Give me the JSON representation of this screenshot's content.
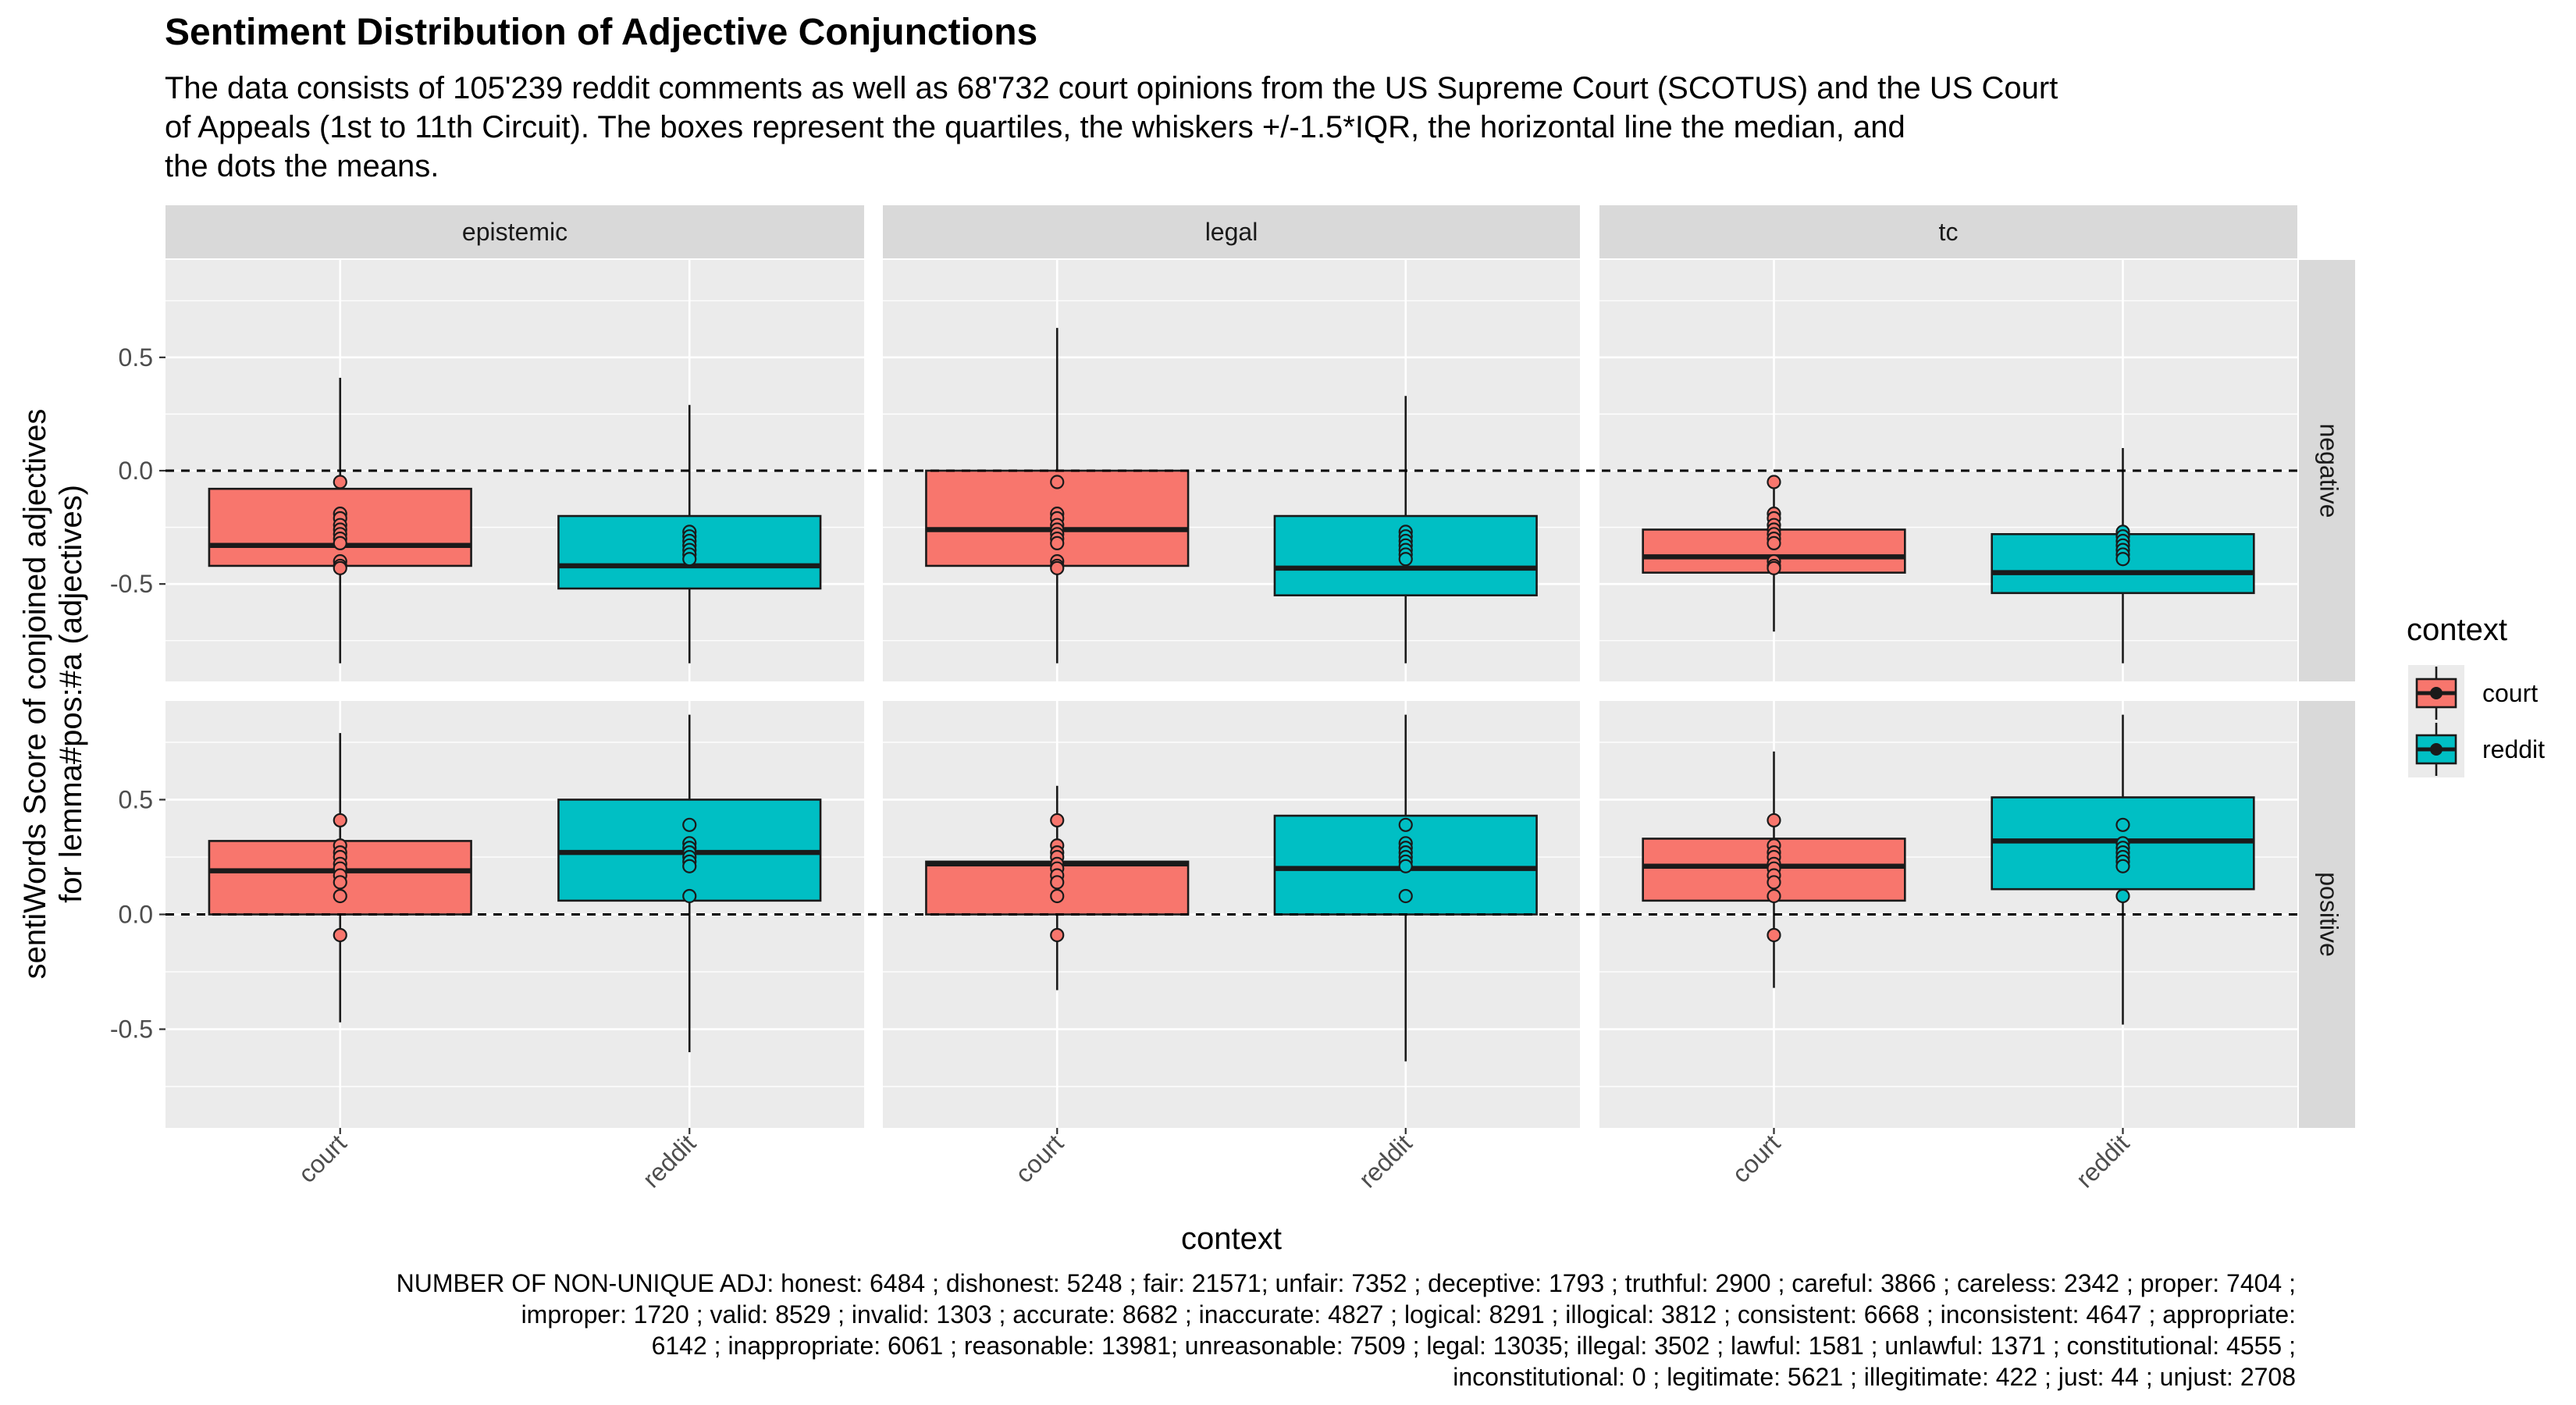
{
  "title": "Sentiment Distribution of Adjective Conjunctions",
  "subtitle_lines": [
    "The data consists of 105'239 reddit comments as well as 68'732 court opinions from the US Supreme Court (SCOTUS) and the US Court",
    "of Appeals (1st to 11th Circuit). The boxes represent the quartiles, the whiskers +/-1.5*IQR, the horizontal line the median, and",
    "the dots the means."
  ],
  "caption_lines": [
    "NUMBER OF NON-UNIQUE ADJ: honest: 6484 ; dishonest: 5248 ; fair: 21571; unfair: 7352 ; deceptive: 1793 ; truthful: 2900 ; careful: 3866 ; careless: 2342 ; proper: 7404 ;",
    "improper: 1720 ; valid: 8529 ; invalid: 1303 ; accurate: 8682 ; inaccurate: 4827 ; logical: 8291 ; illogical: 3812 ; consistent: 6668 ; inconsistent: 4647 ; appropriate:",
    "6142 ; inappropriate: 6061 ; reasonable: 13981; unreasonable: 7509 ; legal: 13035; illegal: 3502 ; lawful: 1581 ; unlawful: 1371 ; constitutional: 4555 ;",
    "inconstitutional: 0 ; legitimate: 5621 ; illegitimate: 422 ; just: 44 ; unjust: 2708"
  ],
  "chart_data": {
    "type": "boxplot",
    "xlabel": "context",
    "ylabel": "sentiWords Score of conjoined adjectives",
    "ylabel2": "for lemma#pos:#a (adjectives)",
    "categories": [
      "court",
      "reddit"
    ],
    "column_facets": [
      "epistemic",
      "legal",
      "tc"
    ],
    "row_facets": [
      "negative",
      "positive"
    ],
    "y_ticks": [
      -0.5,
      0.0,
      0.5
    ],
    "y_tick_labels": [
      "-0.5",
      "0.0",
      "0.5"
    ],
    "ylim": [
      -0.93,
      0.93
    ],
    "reference_line_y": 0,
    "grid": true,
    "legend": {
      "title": "context",
      "position": "right",
      "entries": [
        {
          "label": "court",
          "color": "#F8766D"
        },
        {
          "label": "reddit",
          "color": "#00BFC4"
        }
      ]
    },
    "panels": [
      {
        "row": "negative",
        "col": "epistemic",
        "boxes": [
          {
            "category": "court",
            "whisker_low": -0.85,
            "q1": -0.42,
            "median": -0.33,
            "q3": -0.08,
            "whisker_high": 0.41,
            "means": [
              -0.05,
              -0.19,
              -0.21,
              -0.24,
              -0.26,
              -0.28,
              -0.3,
              -0.32,
              -0.4,
              -0.42,
              -0.43
            ]
          },
          {
            "category": "reddit",
            "whisker_low": -0.85,
            "q1": -0.52,
            "median": -0.42,
            "q3": -0.2,
            "whisker_high": 0.29,
            "means": [
              -0.27,
              -0.29,
              -0.31,
              -0.33,
              -0.35,
              -0.37,
              -0.39
            ]
          }
        ]
      },
      {
        "row": "negative",
        "col": "legal",
        "boxes": [
          {
            "category": "court",
            "whisker_low": -0.85,
            "q1": -0.42,
            "median": -0.26,
            "q3": 0.0,
            "whisker_high": 0.63,
            "means": [
              -0.05,
              -0.19,
              -0.21,
              -0.24,
              -0.26,
              -0.28,
              -0.3,
              -0.32,
              -0.4,
              -0.42,
              -0.43
            ]
          },
          {
            "category": "reddit",
            "whisker_low": -0.85,
            "q1": -0.55,
            "median": -0.43,
            "q3": -0.2,
            "whisker_high": 0.33,
            "means": [
              -0.27,
              -0.29,
              -0.31,
              -0.33,
              -0.35,
              -0.37,
              -0.39
            ]
          }
        ]
      },
      {
        "row": "negative",
        "col": "tc",
        "boxes": [
          {
            "category": "court",
            "whisker_low": -0.71,
            "q1": -0.45,
            "median": -0.38,
            "q3": -0.26,
            "whisker_high": -0.06,
            "means": [
              -0.05,
              -0.19,
              -0.21,
              -0.24,
              -0.26,
              -0.28,
              -0.3,
              -0.32,
              -0.4,
              -0.42,
              -0.43
            ]
          },
          {
            "category": "reddit",
            "whisker_low": -0.85,
            "q1": -0.54,
            "median": -0.45,
            "q3": -0.28,
            "whisker_high": 0.1,
            "means": [
              -0.27,
              -0.29,
              -0.31,
              -0.33,
              -0.35,
              -0.37,
              -0.39
            ]
          }
        ]
      },
      {
        "row": "positive",
        "col": "epistemic",
        "boxes": [
          {
            "category": "court",
            "whisker_low": -0.47,
            "q1": 0.0,
            "median": 0.19,
            "q3": 0.32,
            "whisker_high": 0.79,
            "means": [
              0.41,
              0.3,
              0.27,
              0.25,
              0.22,
              0.2,
              0.17,
              0.14,
              0.08,
              -0.09
            ]
          },
          {
            "category": "reddit",
            "whisker_low": -0.6,
            "q1": 0.06,
            "median": 0.27,
            "q3": 0.5,
            "whisker_high": 0.87,
            "means": [
              0.39,
              0.31,
              0.29,
              0.27,
              0.25,
              0.23,
              0.21,
              0.08
            ]
          }
        ]
      },
      {
        "row": "positive",
        "col": "legal",
        "boxes": [
          {
            "category": "court",
            "whisker_low": -0.33,
            "q1": 0.0,
            "median": 0.22,
            "q3": 0.23,
            "whisker_high": 0.56,
            "means": [
              0.41,
              0.3,
              0.27,
              0.25,
              0.22,
              0.2,
              0.17,
              0.14,
              0.08,
              -0.09
            ]
          },
          {
            "category": "reddit",
            "whisker_low": -0.64,
            "q1": 0.0,
            "median": 0.2,
            "q3": 0.43,
            "whisker_high": 0.87,
            "means": [
              0.39,
              0.31,
              0.29,
              0.27,
              0.25,
              0.23,
              0.21,
              0.08
            ]
          }
        ]
      },
      {
        "row": "positive",
        "col": "tc",
        "boxes": [
          {
            "category": "court",
            "whisker_low": -0.32,
            "q1": 0.06,
            "median": 0.21,
            "q3": 0.33,
            "whisker_high": 0.71,
            "means": [
              0.41,
              0.3,
              0.27,
              0.25,
              0.22,
              0.2,
              0.17,
              0.14,
              0.08,
              -0.09
            ]
          },
          {
            "category": "reddit",
            "whisker_low": -0.48,
            "q1": 0.11,
            "median": 0.32,
            "q3": 0.51,
            "whisker_high": 0.87,
            "means": [
              0.39,
              0.31,
              0.29,
              0.27,
              0.25,
              0.23,
              0.21,
              0.08
            ]
          }
        ]
      }
    ]
  }
}
